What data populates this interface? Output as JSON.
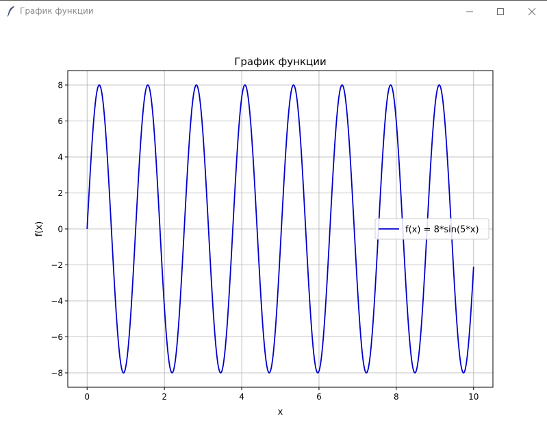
{
  "window": {
    "title": "График функции",
    "icon": "feather-icon",
    "controls": [
      "minimize-icon",
      "maximize-icon",
      "close-icon"
    ]
  },
  "legend": {
    "label": "f(x) = 8*sin(5*x)"
  },
  "chart_data": {
    "type": "line",
    "title": "График функции",
    "xlabel": "x",
    "ylabel": "f(x)",
    "function": "8*sin(5*x)",
    "series": [
      {
        "name": "f(x) = 8*sin(5*x)",
        "color": "#0000cc",
        "x_range": [
          0,
          10
        ],
        "samples": 1000
      }
    ],
    "xlim": [
      -0.5,
      10.5
    ],
    "ylim": [
      -8.8,
      8.8
    ],
    "x_ticks": [
      0,
      2,
      4,
      6,
      8,
      10
    ],
    "x_tick_labels": [
      "0",
      "2",
      "4",
      "6",
      "8",
      "10"
    ],
    "y_ticks": [
      -8,
      -6,
      -4,
      -2,
      0,
      2,
      4,
      6,
      8
    ],
    "y_tick_labels": [
      "−8",
      "−6",
      "−4",
      "−2",
      "0",
      "2",
      "4",
      "6",
      "8"
    ],
    "grid": true,
    "legend_position": "center-right"
  }
}
